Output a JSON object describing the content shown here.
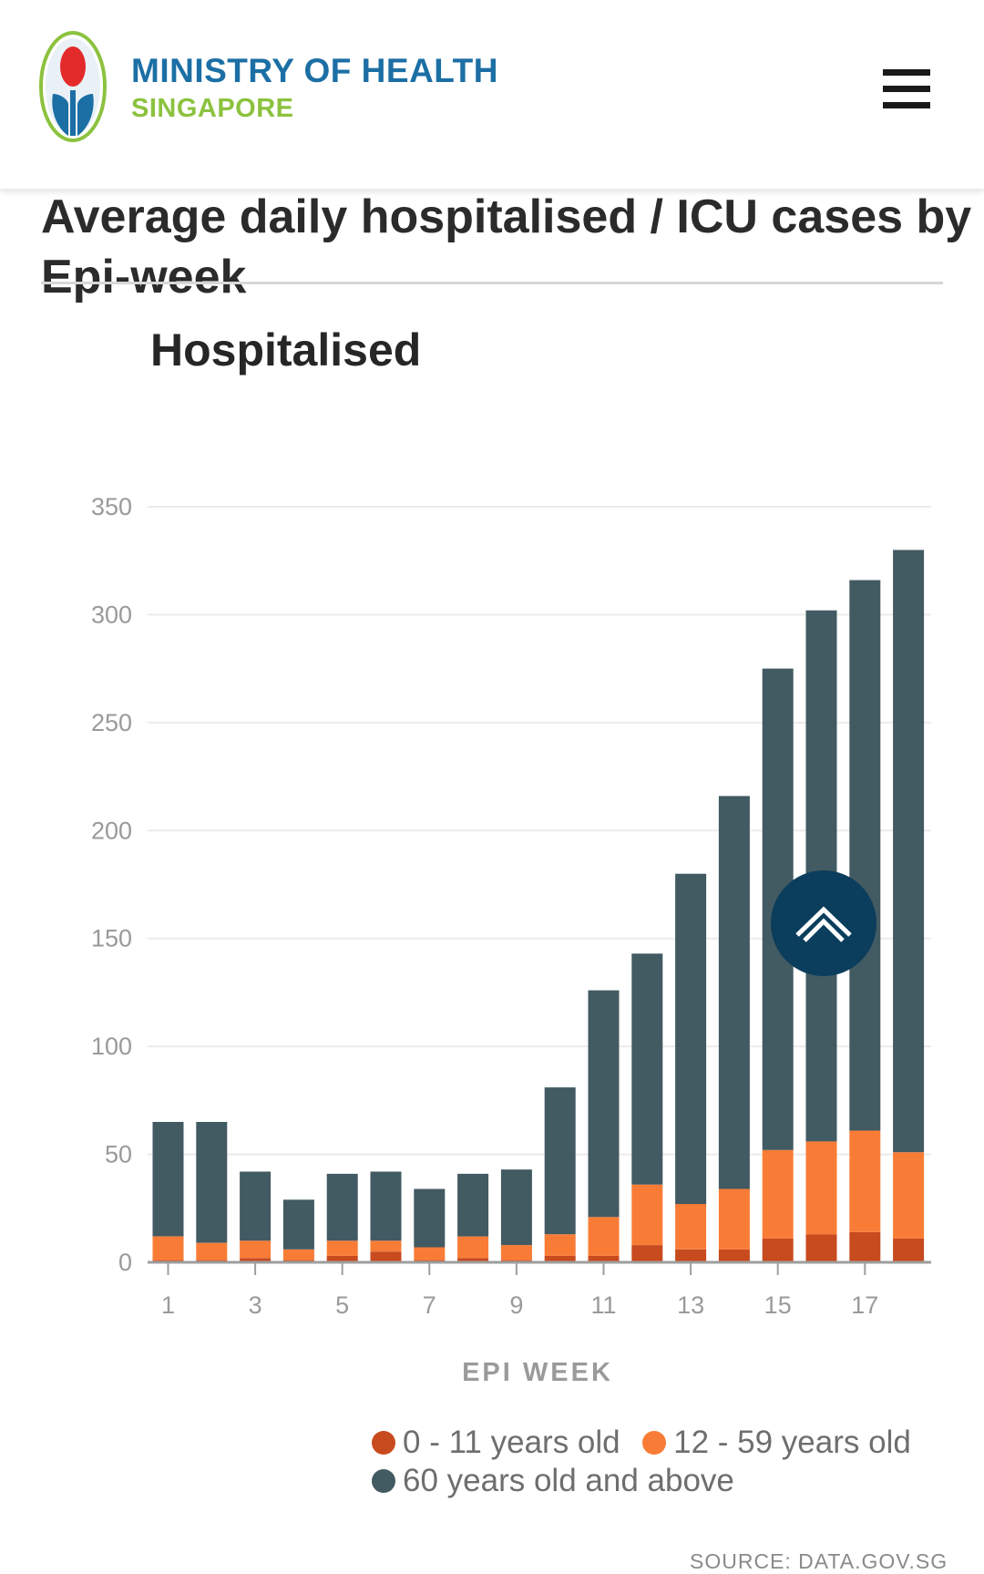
{
  "header": {
    "org_name_line1": "MINISTRY OF HEALTH",
    "org_name_line2": "SINGAPORE"
  },
  "section": {
    "heading_line1": "Average daily hospitalised / ICU cases by",
    "heading_line2": "Epi-week"
  },
  "colors": {
    "age_0_11": "#c84a1f",
    "age_12_59": "#f97c36",
    "age_60_plus": "#425a62",
    "logo_blue": "#1c6fa5",
    "logo_green": "#8cc23f",
    "back_to_top": "#0b3d5c"
  },
  "icons": {
    "menu": "hamburger-menu-icon",
    "back_to_top": "chevron-up-icon",
    "logo": "moh-emblem-icon"
  },
  "chart_data": {
    "type": "bar",
    "stacked": true,
    "title": "Hospitalised",
    "xlabel": "EPI WEEK",
    "ylabel": "",
    "ylim": [
      0,
      350
    ],
    "yticks": [
      0,
      50,
      100,
      150,
      200,
      250,
      300,
      350
    ],
    "x_tick_labels": [
      "1",
      "3",
      "5",
      "7",
      "9",
      "11",
      "13",
      "15",
      "17"
    ],
    "grid": true,
    "legend_position": "bottom",
    "categories": [
      "1",
      "2",
      "3",
      "4",
      "5",
      "6",
      "7",
      "8",
      "9",
      "10",
      "11",
      "12",
      "13",
      "14",
      "15",
      "16",
      "17",
      "18"
    ],
    "series": [
      {
        "name": "0 - 11 years old",
        "values": [
          1,
          1,
          2,
          1,
          3,
          5,
          1,
          2,
          1,
          3,
          3,
          8,
          6,
          6,
          11,
          13,
          14,
          11
        ]
      },
      {
        "name": "12 - 59 years old",
        "values": [
          11,
          8,
          8,
          5,
          7,
          5,
          6,
          10,
          7,
          10,
          18,
          28,
          21,
          28,
          41,
          43,
          47,
          40
        ]
      },
      {
        "name": "60 years old and above",
        "values": [
          53,
          56,
          32,
          23,
          31,
          32,
          27,
          29,
          35,
          68,
          105,
          107,
          153,
          182,
          223,
          246,
          255,
          279
        ]
      }
    ]
  },
  "source_note": "SOURCE: DATA.GOV.SG"
}
